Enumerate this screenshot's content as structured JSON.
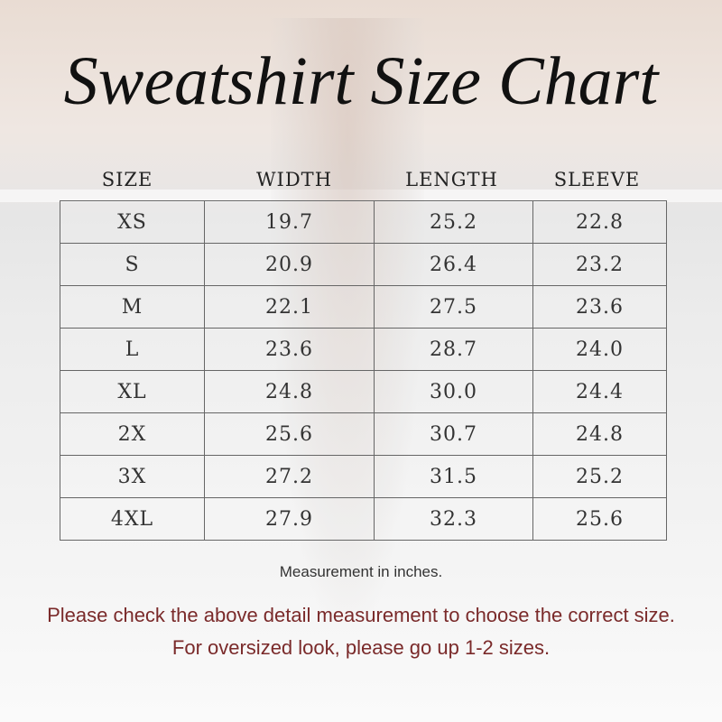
{
  "title": "Sweatshirt Size Chart",
  "headers": [
    "SIZE",
    "WIDTH",
    "LENGTH",
    "SLEEVE"
  ],
  "rows": [
    [
      "XS",
      "19.7",
      "25.2",
      "22.8"
    ],
    [
      "S",
      "20.9",
      "26.4",
      "23.2"
    ],
    [
      "M",
      "22.1",
      "27.5",
      "23.6"
    ],
    [
      "L",
      "23.6",
      "28.7",
      "24.0"
    ],
    [
      "XL",
      "24.8",
      "30.0",
      "24.4"
    ],
    [
      "2X",
      "25.6",
      "30.7",
      "24.8"
    ],
    [
      "3X",
      "27.2",
      "31.5",
      "25.2"
    ],
    [
      "4XL",
      "27.9",
      "32.3",
      "25.6"
    ]
  ],
  "notes": {
    "unit": "Measurement in inches.",
    "advice": "Please check the above detail measurement to choose the correct size.",
    "oversized": "For oversized look,  please go up 1-2 sizes."
  },
  "colors": {
    "advice_text": "#7a2a2a"
  }
}
